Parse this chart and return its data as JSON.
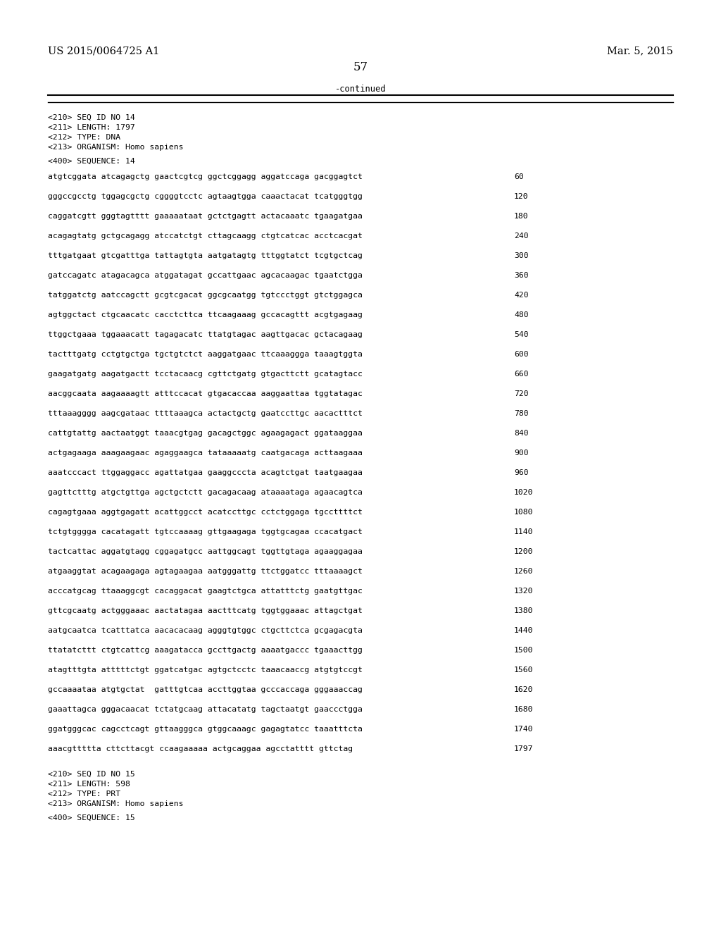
{
  "background_color": "#ffffff",
  "page_number": "57",
  "left_header": "US 2015/0064725 A1",
  "right_header": "Mar. 5, 2015",
  "continued_text": "-continued",
  "metadata_lines": [
    "<210> SEQ ID NO 14",
    "<211> LENGTH: 1797",
    "<212> TYPE: DNA",
    "<213> ORGANISM: Homo sapiens"
  ],
  "sequence_header": "<400> SEQUENCE: 14",
  "sequence_lines": [
    [
      "atgtcggata atcagagctg gaactcgtcg ggctcggagg aggatccaga gacggagtct",
      "60"
    ],
    [
      "gggccgcctg tggagcgctg cggggtcctc agtaagtgga caaactacat tcatgggtgg",
      "120"
    ],
    [
      "caggatcgtt gggtagtttt gaaaaataat gctctgagtt actacaaatc tgaagatgaa",
      "180"
    ],
    [
      "acagagtatg gctgcagagg atccatctgt cttagcaagg ctgtcatcac acctcacgat",
      "240"
    ],
    [
      "tttgatgaat gtcgatttga tattagtgta aatgatagtg tttggtatct tcgtgctcag",
      "300"
    ],
    [
      "gatccagatc atagacagca atggatagat gccattgaac agcacaagac tgaatctgga",
      "360"
    ],
    [
      "tatggatctg aatccagctt gcgtcgacat ggcgcaatgg tgtccctggt gtctggagca",
      "420"
    ],
    [
      "agtggctact ctgcaacatc cacctcttca ttcaagaaag gccacagttt acgtgagaag",
      "480"
    ],
    [
      "ttggctgaaa tggaaacatt tagagacatc ttatgtagac aagttgacac gctacagaag",
      "540"
    ],
    [
      "tactttgatg cctgtgctga tgctgtctct aaggatgaac ttcaaaggga taaagtggta",
      "600"
    ],
    [
      "gaagatgatg aagatgactt tcctacaacg cgttctgatg gtgacttctt gcatagtacc",
      "660"
    ],
    [
      "aacggcaata aagaaaagtt atttccacat gtgacaccaa aaggaattaa tggtatagac",
      "720"
    ],
    [
      "tttaaagggg aagcgataac ttttaaagca actactgctg gaatccttgc aacactttct",
      "780"
    ],
    [
      "cattgtattg aactaatggt taaacgtgag gacagctggc agaagagact ggataaggaa",
      "840"
    ],
    [
      "actgagaaga aaagaagaac agaggaagca tataaaaatg caatgacaga acttaagaaa",
      "900"
    ],
    [
      "aaatcccact ttggaggacc agattatgaa gaaggcccta acagtctgat taatgaagaa",
      "960"
    ],
    [
      "gagttctttg atgctgttga agctgctctt gacagacaag ataaaataga agaacagtca",
      "1020"
    ],
    [
      "cagagtgaaa aggtgagatt acattggcct acatccttgc cctctggaga tgccttttct",
      "1080"
    ],
    [
      "tctgtgggga cacatagatt tgtccaaaag gttgaagaga tggtgcagaa ccacatgact",
      "1140"
    ],
    [
      "tactcattac aggatgtagg cggagatgcc aattggcagt tggttgtaga agaaggagaa",
      "1200"
    ],
    [
      "atgaaggtat acagaagaga agtagaagaa aatgggattg ttctggatcc tttaaaagct",
      "1260"
    ],
    [
      "acccatgcag ttaaaggcgt cacaggacat gaagtctgca attatttctg gaatgttgac",
      "1320"
    ],
    [
      "gttcgcaatg actgggaaac aactatagaa aactttcatg tggtggaaac attagctgat",
      "1380"
    ],
    [
      "aatgcaatca tcatttatca aacacacaag agggtgtggc ctgcttctca gcgagacgta",
      "1440"
    ],
    [
      "ttatatcttt ctgtcattcg aaagatacca gccttgactg aaaatgaccc tgaaacttgg",
      "1500"
    ],
    [
      "atagtttgta atttttctgt ggatcatgac agtgctcctc taaacaaccg atgtgtccgt",
      "1560"
    ],
    [
      "gccaaaataa atgtgctat  gatttgtcaa accttggtaa gcccaccaga gggaaaccag",
      "1620"
    ],
    [
      "gaaattagca gggacaacat tctatgcaag attacatatg tagctaatgt gaaccctgga",
      "1680"
    ],
    [
      "ggatgggcac cagcctcagt gttaagggca gtggcaaagc gagagtatcc taaatttcta",
      "1740"
    ],
    [
      "aaacgttttta cttcttacgt ccaagaaaaa actgcaggaa agcctatttt gttctag",
      "1797"
    ]
  ],
  "footer_metadata": [
    "<210> SEQ ID NO 15",
    "<211> LENGTH: 598",
    "<212> TYPE: PRT",
    "<213> ORGANISM: Homo sapiens"
  ],
  "footer_seq_header": "<400> SEQUENCE: 15",
  "mono_font_size": 8.2,
  "header_font_size": 10.5,
  "page_num_font_size": 12
}
